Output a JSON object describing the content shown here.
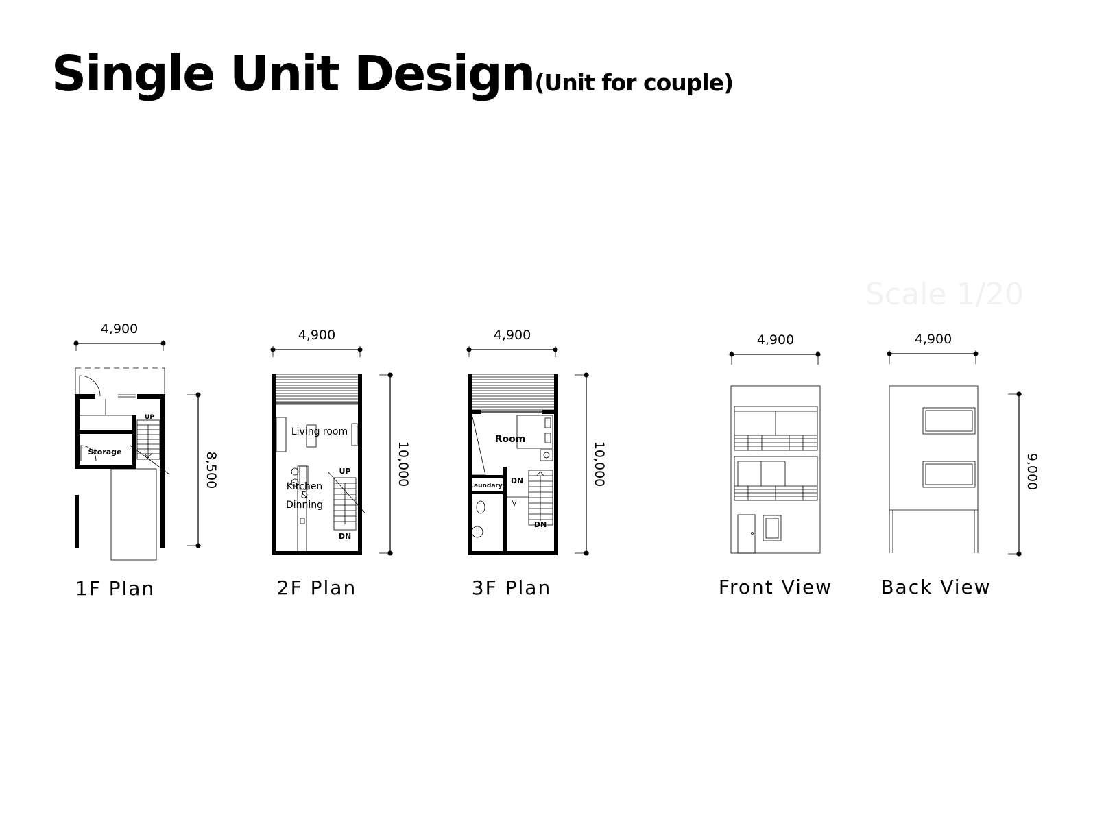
{
  "title": {
    "main": "Single Unit Design",
    "sub": "(Unit for couple)"
  },
  "faint_text": "Scale 1/20",
  "plans": [
    {
      "caption": "1F Plan",
      "width_dim": "4,900",
      "depth_dim": "8,500",
      "rooms": [
        "Storage"
      ],
      "stair_labels": [
        "UP"
      ]
    },
    {
      "caption": "2F Plan",
      "width_dim": "4,900",
      "depth_dim": "10,000",
      "rooms": [
        "Living room",
        "Kitchen",
        "&",
        "Dinning"
      ],
      "stair_labels": [
        "UP",
        "DN"
      ]
    },
    {
      "caption": "3F Plan",
      "width_dim": "4,900",
      "depth_dim": "10,000",
      "rooms": [
        "Room",
        "Laundary"
      ],
      "stair_labels": [
        "DN",
        "DN"
      ]
    }
  ],
  "elevations": [
    {
      "caption": "Front View",
      "width_dim": "4,900"
    },
    {
      "caption": "Back View",
      "width_dim": "4,900",
      "height_dim": "9,000"
    }
  ]
}
